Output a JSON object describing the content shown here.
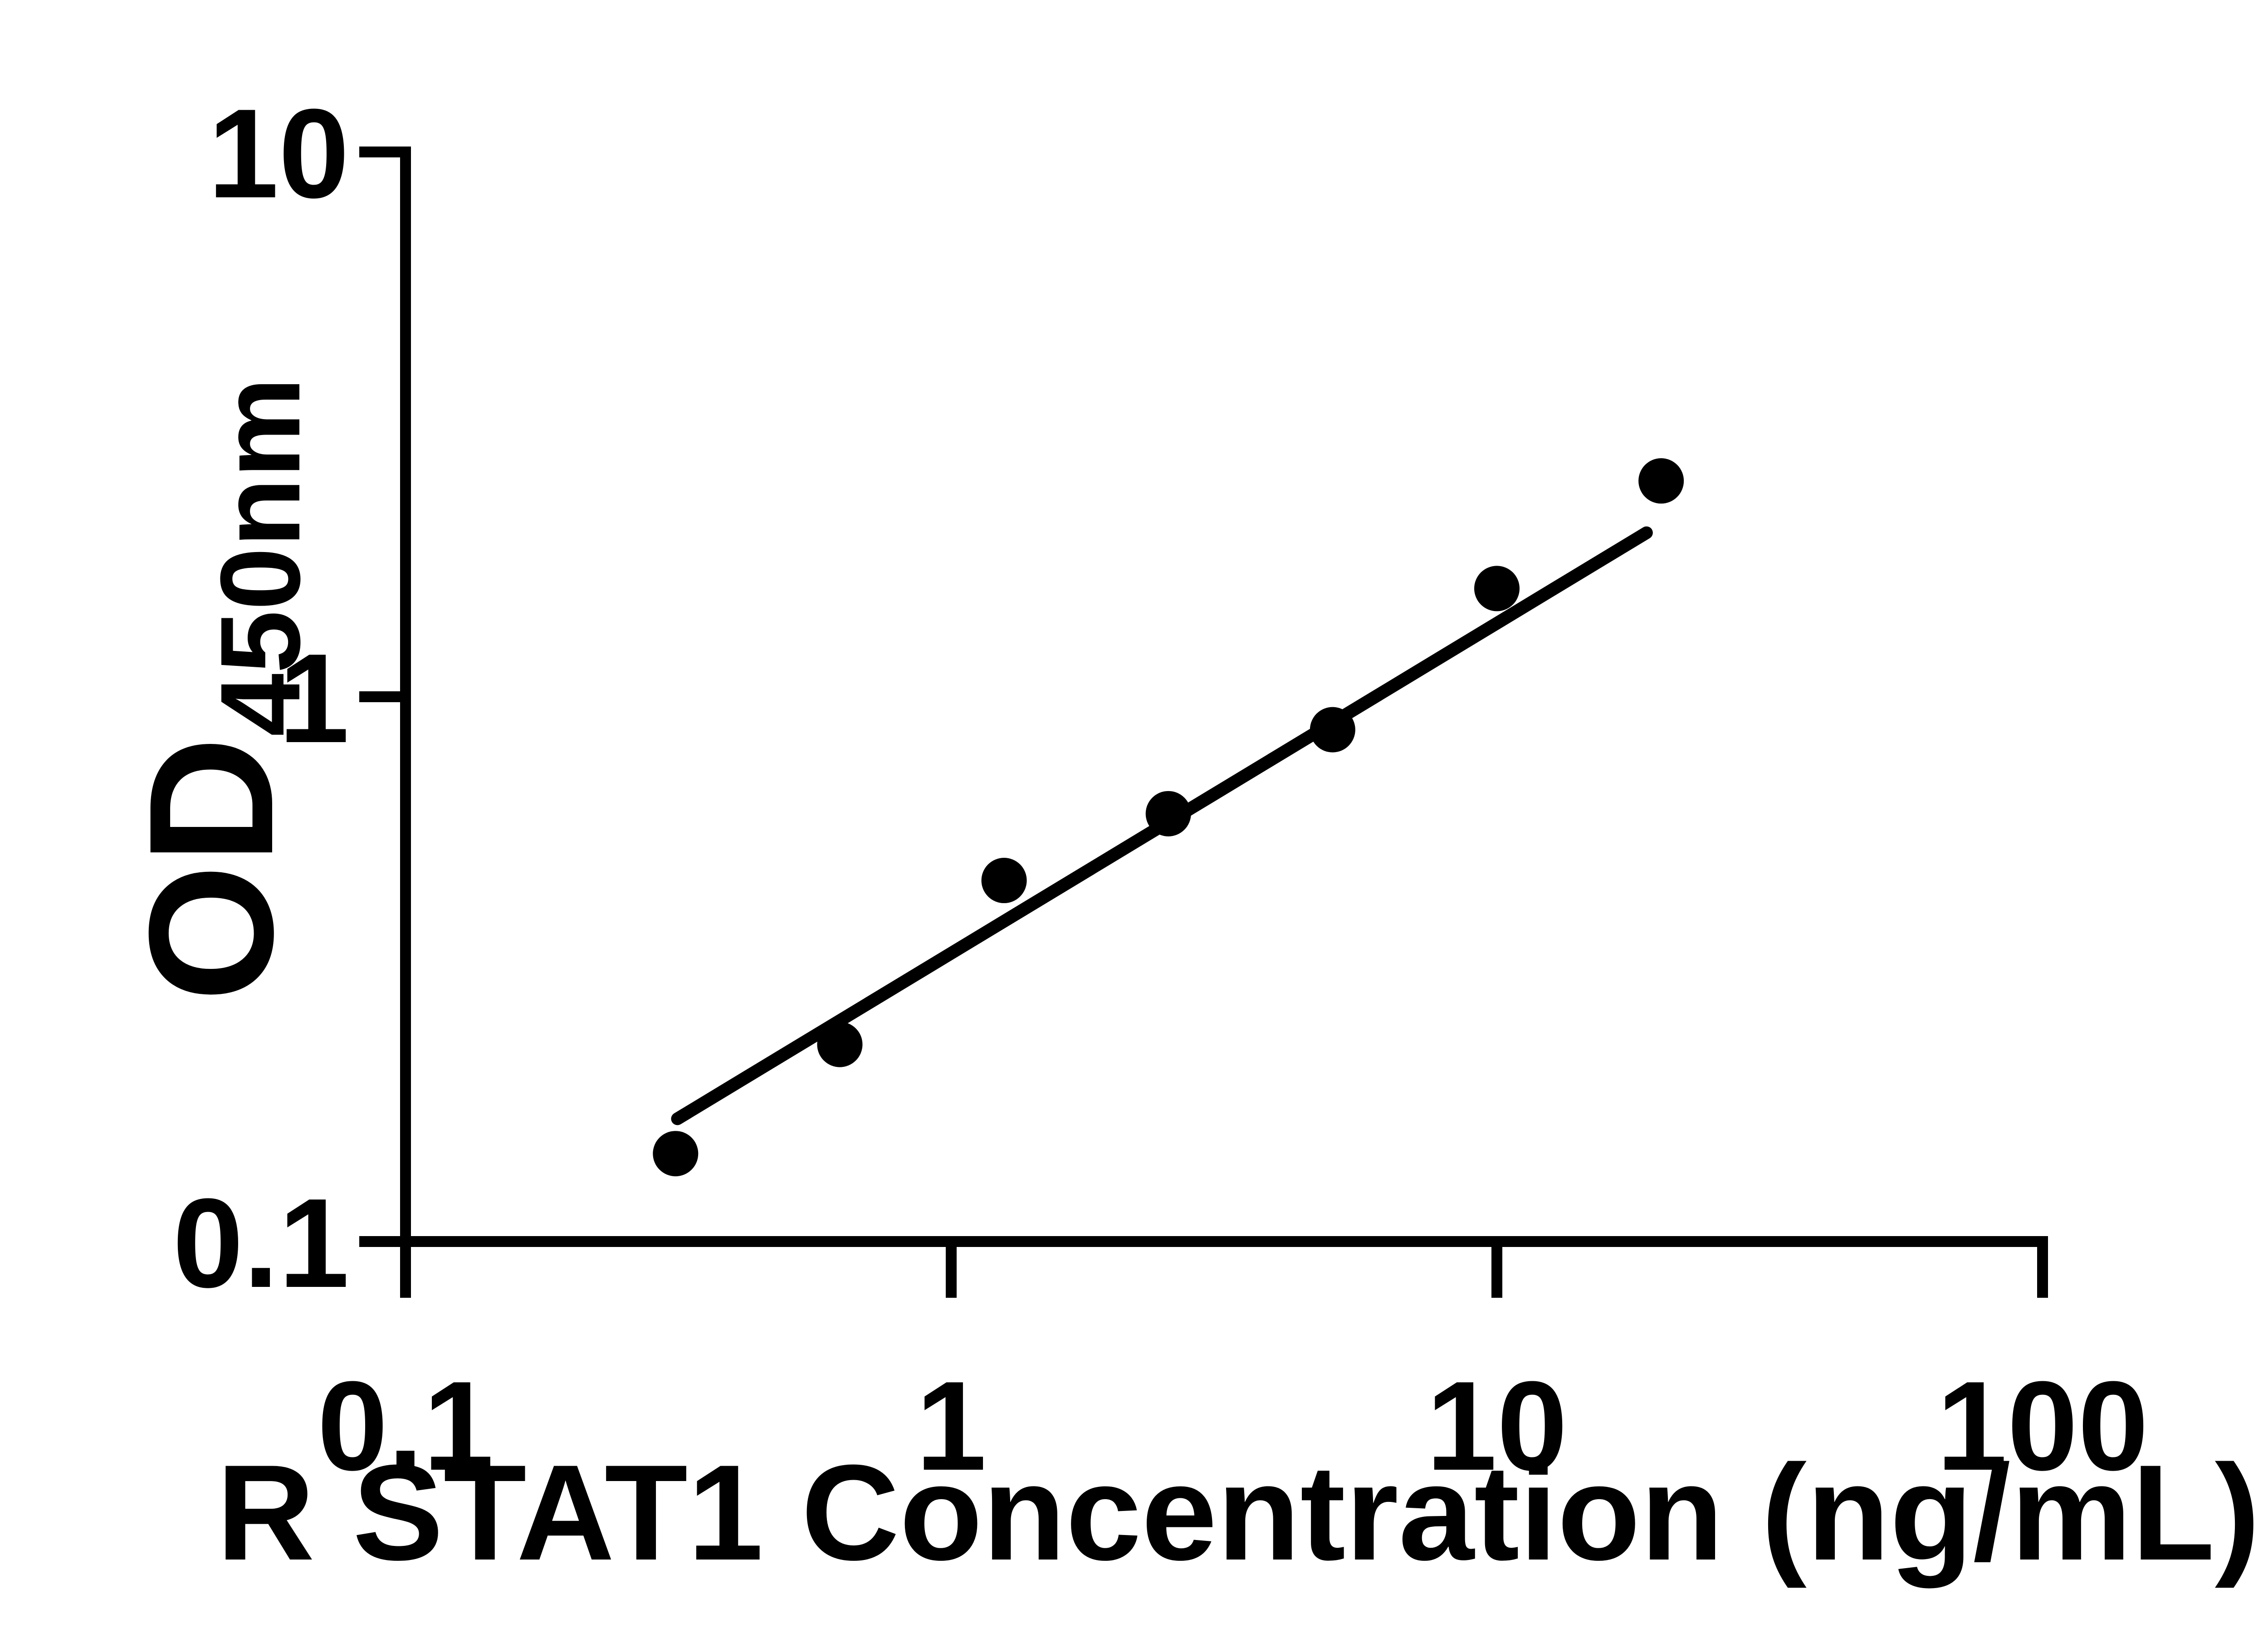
{
  "colors": {
    "foreground": "#000000",
    "background": "#ffffff"
  },
  "chart_data": {
    "type": "scatter",
    "title": "",
    "xlabel": "R STAT1 Concentration (ng/mL)",
    "ylabel": "OD",
    "ylabel_subscript": "450nm",
    "x_scale": "log",
    "y_scale": "log",
    "xlim": [
      0.1,
      100
    ],
    "ylim": [
      0.1,
      10
    ],
    "x_ticks": [
      0.1,
      1,
      10,
      100
    ],
    "x_tick_labels": [
      "0.1",
      "1",
      "10",
      "100"
    ],
    "y_ticks": [
      10,
      1,
      0.1
    ],
    "y_tick_labels": [
      "10",
      "1",
      "0.1"
    ],
    "grid": false,
    "legend": "none",
    "marker": "filled-circle",
    "series": [
      {
        "name": "standard-curve-points",
        "color": "#000000",
        "points": [
          {
            "x": 0.3125,
            "y": 0.145
          },
          {
            "x": 0.625,
            "y": 0.23
          },
          {
            "x": 1.25,
            "y": 0.46
          },
          {
            "x": 2.5,
            "y": 0.61
          },
          {
            "x": 5,
            "y": 0.87
          },
          {
            "x": 10,
            "y": 1.58
          },
          {
            "x": 20,
            "y": 2.49
          }
        ]
      }
    ],
    "trendline": {
      "type": "linear-fit-loglog",
      "x1": 0.315,
      "y1": 0.168,
      "x2": 18.8,
      "y2": 2.0
    }
  }
}
